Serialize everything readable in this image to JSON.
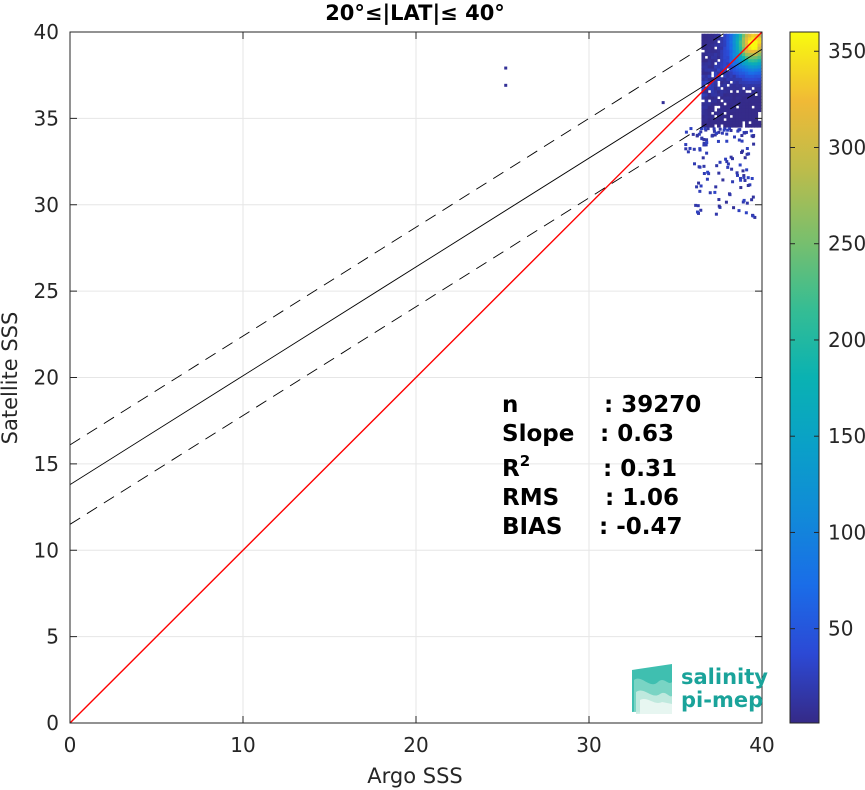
{
  "chart_data": {
    "type": "heatmap",
    "title": "20°≤|LAT|≤ 40°",
    "xlabel": "Argo SSS",
    "ylabel": "Satellite SSS",
    "xlim": [
      0,
      40
    ],
    "ylim": [
      0,
      40
    ],
    "xticks": [
      0,
      10,
      20,
      30,
      40
    ],
    "yticks": [
      0,
      5,
      10,
      15,
      20,
      25,
      30,
      35,
      40
    ],
    "grid": true,
    "colorbar": {
      "min": 1,
      "max": 360,
      "ticks": [
        50,
        100,
        150,
        200,
        250,
        300,
        350
      ],
      "colormap": "parula"
    },
    "lines": [
      {
        "role": "identity",
        "color": "#ff0000",
        "style": "solid",
        "x": [
          0,
          40
        ],
        "y": [
          0,
          40
        ]
      },
      {
        "role": "fit",
        "color": "#000000",
        "style": "solid",
        "x": [
          0,
          40
        ],
        "y": [
          13.8,
          39.0
        ]
      },
      {
        "role": "fit-upper",
        "color": "#000000",
        "style": "dashed",
        "x": [
          0,
          40
        ],
        "y": [
          16.1,
          41.3
        ]
      },
      {
        "role": "fit-lower",
        "color": "#000000",
        "style": "dashed",
        "x": [
          0,
          40
        ],
        "y": [
          11.5,
          36.7
        ]
      }
    ],
    "density_region": {
      "core": {
        "x": [
          36.5,
          39.8
        ],
        "y": [
          34.5,
          39.8
        ]
      },
      "peak": {
        "x": 39.4,
        "y": 39.3,
        "count": 360
      },
      "sparse_tail": {
        "x": [
          35.5,
          39.5
        ],
        "y": [
          29.3,
          34.5
        ]
      },
      "outliers": [
        [
          25.1,
          38.0
        ],
        [
          25.1,
          37.0
        ],
        [
          34.2,
          36.0
        ]
      ]
    },
    "stats": [
      {
        "label": "n",
        "value": ": 39270"
      },
      {
        "label": "Slope",
        "value": ": 0.63"
      },
      {
        "label": "R",
        "sup": "2",
        "value": ": 0.31"
      },
      {
        "label": "RMS",
        "value": ": 1.06"
      },
      {
        "label": "BIAS",
        "value": ": -0.47"
      }
    ]
  },
  "logo": {
    "line1": "salinity",
    "line2": "pi-mep"
  }
}
